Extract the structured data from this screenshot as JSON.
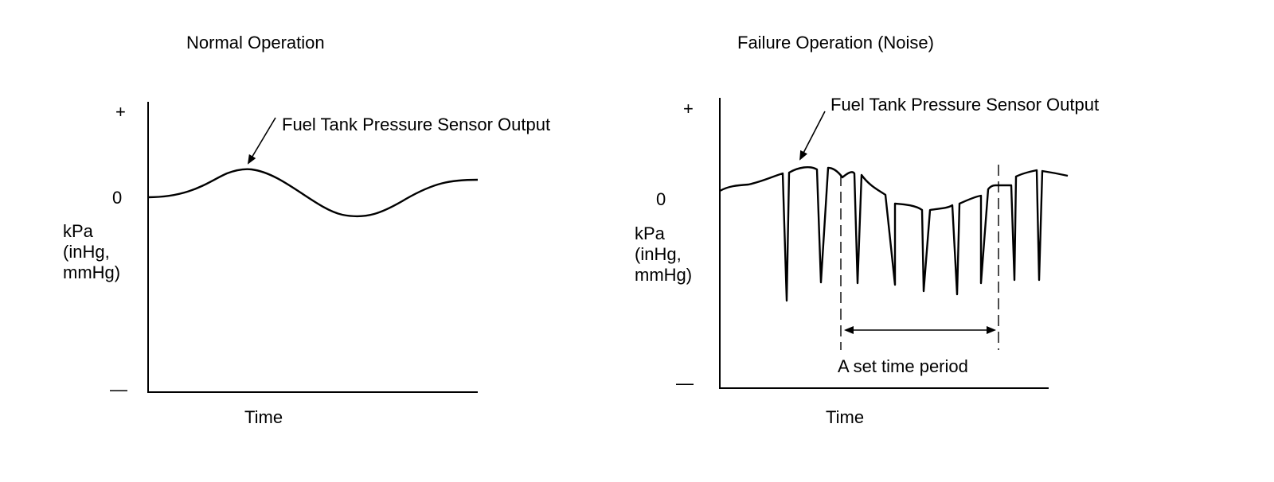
{
  "left": {
    "title": "Normal Operation",
    "plus": "+",
    "zero": "0",
    "minus": "—",
    "unit_lines": [
      "kPa",
      "(inHg,",
      "mmHg)"
    ],
    "x_label": "Time",
    "annotation": "Fuel Tank Pressure Sensor Output"
  },
  "right": {
    "title": "Failure Operation (Noise)",
    "plus": "+",
    "zero": "0",
    "minus": "—",
    "unit_lines": [
      "kPa",
      "(inHg,",
      "mmHg)"
    ],
    "x_label": "Time",
    "annotation": "Fuel Tank Pressure Sensor Output",
    "period_label": "A set time period"
  }
}
